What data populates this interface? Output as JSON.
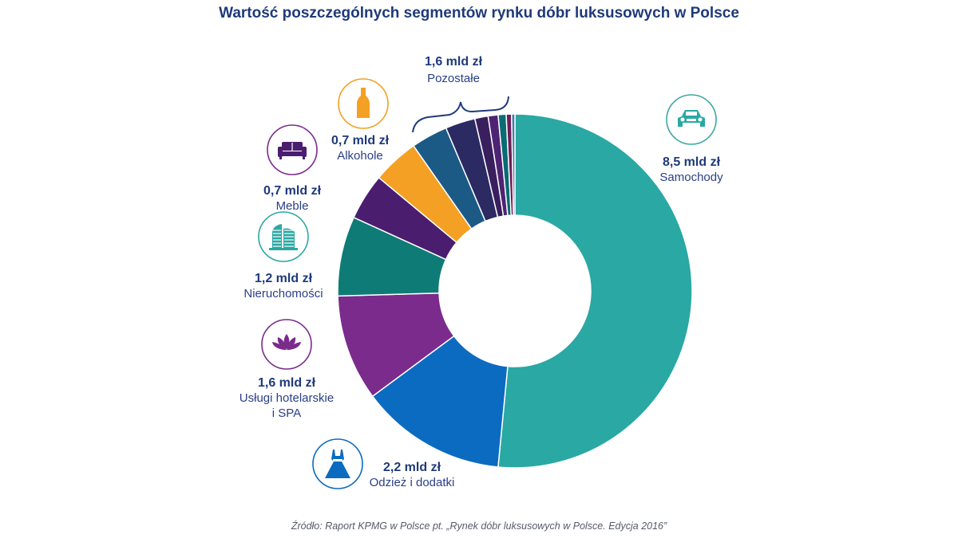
{
  "chart_data": {
    "type": "pie",
    "title": "Wartość poszczególnych segmentów rynku dóbr luksusowych w Polsce",
    "source": "Źródło: Raport KPMG w Polsce pt. „Rynek dóbr luksusowych w Polsce. Edycja 2016”",
    "unit": "mld zł",
    "slices": [
      {
        "value": 8.5,
        "value_label": "8,5 mld zł",
        "labels": [
          "Samochody"
        ],
        "color": "#2aa8a3",
        "icon": "car-icon"
      },
      {
        "value": 2.2,
        "value_label": "2,2 mld zł",
        "labels": [
          "Odzież i dodatki"
        ],
        "color": "#0b6bc0",
        "icon": "dress-icon"
      },
      {
        "value": 1.6,
        "value_label": "1,6 mld zł",
        "labels": [
          "Usługi hotelarskie",
          "i SPA"
        ],
        "color": "#7a2b8c",
        "icon": "lotus-icon"
      },
      {
        "value": 1.2,
        "value_label": "1,2 mld zł",
        "labels": [
          "Nieruchomości"
        ],
        "color": "#0f7b76",
        "icon": "building-icon"
      },
      {
        "value": 0.7,
        "value_label": "0,7 mld zł",
        "labels": [
          "Meble"
        ],
        "color": "#4b1d6f",
        "icon": "sofa-icon"
      },
      {
        "value": 0.7,
        "value_label": "0,7 mld zł",
        "labels": [
          "Alkohole"
        ],
        "color": "#f4a024",
        "icon": "bottle-icon"
      }
    ],
    "other_group": {
      "value": 1.6,
      "value_label": "1,6 mld zł",
      "label": "Pozostałe",
      "parts": [
        {
          "value": 0.55,
          "color": "#1c5a86"
        },
        {
          "value": 0.45,
          "color": "#2c2a63"
        },
        {
          "value": 0.2,
          "color": "#3a1f5e"
        },
        {
          "value": 0.15,
          "color": "#4e2374"
        },
        {
          "value": 0.12,
          "color": "#0b6b73"
        },
        {
          "value": 0.08,
          "color": "#6b1e57"
        },
        {
          "value": 0.05,
          "color": "#3d7fa8"
        }
      ]
    }
  }
}
